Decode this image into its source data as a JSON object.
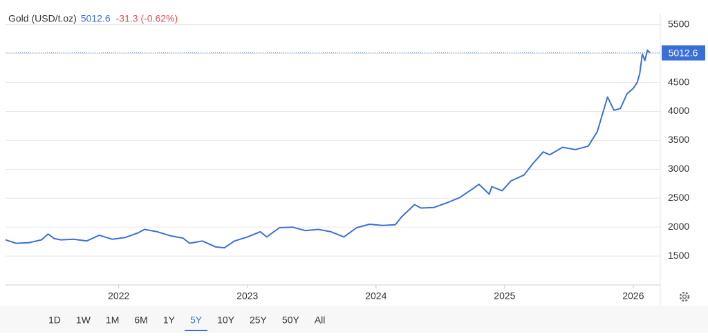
{
  "chart_data": {
    "type": "line",
    "title": "Gold (USD/t.oz)",
    "price": 5012.6,
    "change": "-31.3 (-0.62%)",
    "color": "#3a6fd8",
    "x": [
      2021.12,
      2021.2,
      2021.3,
      2021.4,
      2021.45,
      2021.5,
      2021.55,
      2021.65,
      2021.75,
      2021.85,
      2021.95,
      2022.05,
      2022.15,
      2022.2,
      2022.3,
      2022.4,
      2022.5,
      2022.55,
      2022.65,
      2022.75,
      2022.82,
      2022.9,
      2023.0,
      2023.1,
      2023.15,
      2023.25,
      2023.35,
      2023.45,
      2023.55,
      2023.65,
      2023.75,
      2023.85,
      2023.95,
      2024.05,
      2024.15,
      2024.2,
      2024.3,
      2024.35,
      2024.45,
      2024.55,
      2024.65,
      2024.75,
      2024.8,
      2024.88,
      2024.9,
      2024.98,
      2025.05,
      2025.15,
      2025.22,
      2025.3,
      2025.35,
      2025.45,
      2025.55,
      2025.65,
      2025.72,
      2025.8,
      2025.85,
      2025.9,
      2025.95,
      2026.0,
      2026.03,
      2026.05,
      2026.07,
      2026.09,
      2026.11,
      2026.13
    ],
    "values": [
      1780,
      1720,
      1730,
      1780,
      1880,
      1800,
      1780,
      1790,
      1760,
      1860,
      1790,
      1820,
      1900,
      1960,
      1920,
      1850,
      1810,
      1720,
      1760,
      1660,
      1640,
      1760,
      1830,
      1920,
      1830,
      1990,
      2000,
      1940,
      1960,
      1920,
      1830,
      1990,
      2050,
      2030,
      2040,
      2180,
      2390,
      2330,
      2340,
      2420,
      2510,
      2660,
      2740,
      2570,
      2700,
      2630,
      2800,
      2900,
      3100,
      3300,
      3250,
      3380,
      3340,
      3400,
      3650,
      4250,
      4020,
      4050,
      4300,
      4400,
      4500,
      4650,
      4990,
      4880,
      5060,
      5012.6
    ],
    "xlim": [
      2021.12,
      2026.21
    ],
    "xticks": [
      2022,
      2023,
      2024,
      2025,
      2026
    ],
    "ylim": [
      1000,
      5700
    ],
    "yticks": [
      1500,
      2000,
      2500,
      3000,
      3500,
      4000,
      4500,
      5000,
      5500
    ],
    "grid": true
  },
  "range_buttons": [
    "1D",
    "1W",
    "1M",
    "6M",
    "1Y",
    "5Y",
    "10Y",
    "25Y",
    "50Y",
    "All"
  ],
  "active_range": "5Y"
}
